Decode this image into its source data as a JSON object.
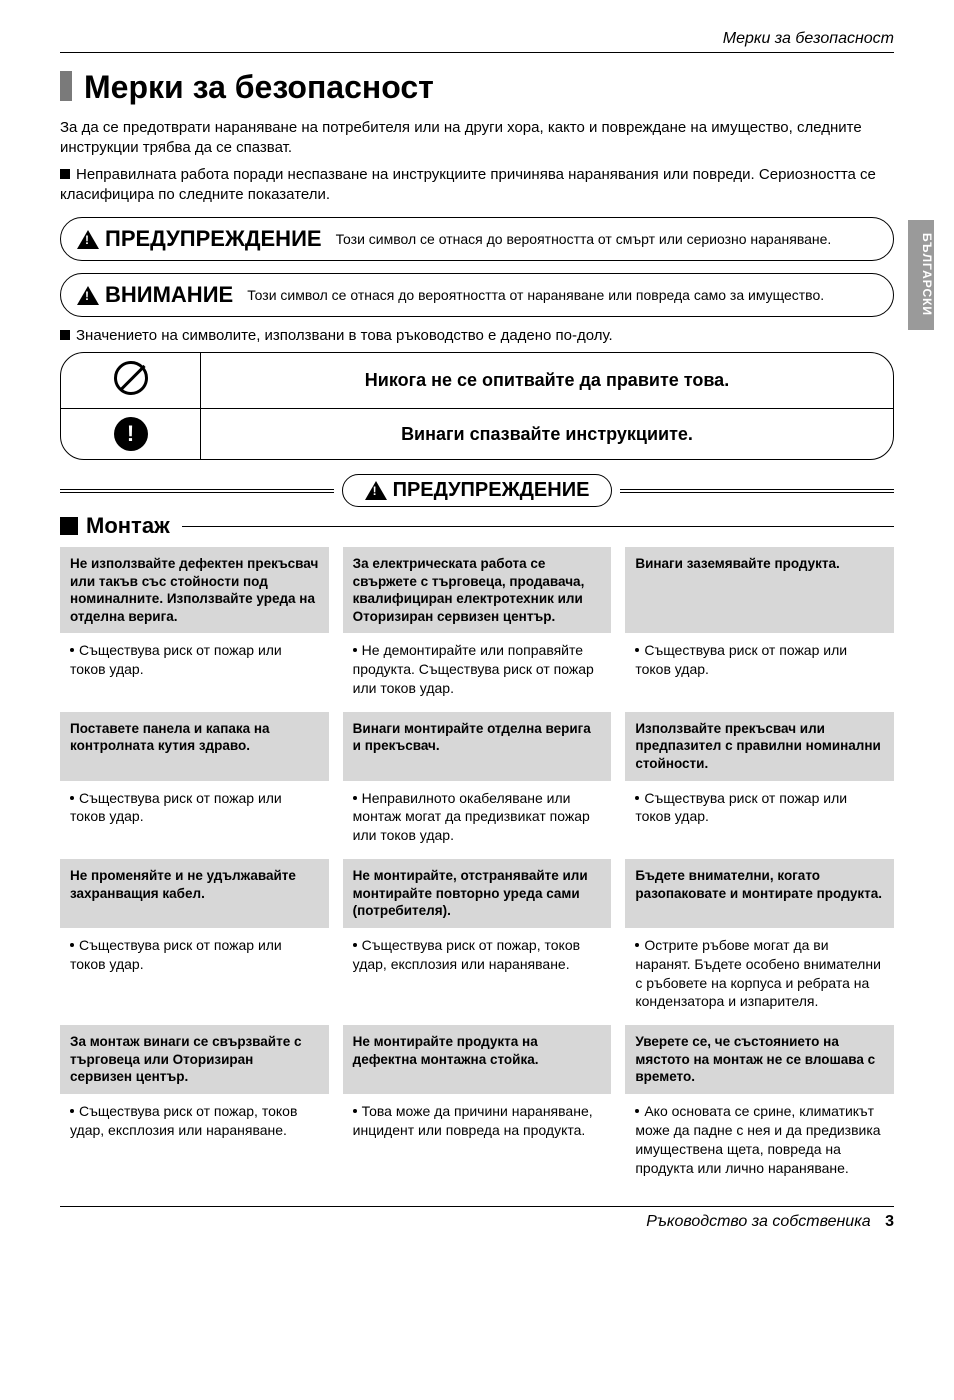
{
  "header": {
    "running_title": "Мерки за безопасност"
  },
  "side_tab": "БЪЛГАРСКИ",
  "title": "Мерки за безопасност",
  "intro": {
    "p1": "За да се предотврати нараняване на потребителя или на други хора, както и повреждане на имущество, следните инструкции трябва да се спазват.",
    "p2": "Неправилната работа поради неспазване на инструкциите причинява наранявания или повреди. Сериозността се класифицира по следните показатели."
  },
  "capsules": {
    "warn_label": "ПРЕДУПРЕЖДЕНИЕ",
    "warn_text": "Този символ се отнася до вероятността от смърт или сериозно нараняване.",
    "attn_label": "ВНИМАНИЕ",
    "attn_text": "Този символ се отнася до вероятността от нараняване или повреда само за имущество."
  },
  "symbols_note": "Значението на символите, използвани в това ръководство е дадено по-долу.",
  "rules": {
    "never": "Никога не се опитвайте да правите това.",
    "always": "Винаги спазвайте инструкциите."
  },
  "divider_label": "ПРЕДУПРЕЖДЕНИЕ",
  "section": "Монтаж",
  "cells": {
    "r1c1h": "Не използвайте дефектен прекъсвач или такъв със стойности под номиналните. Използвайте уреда на отделна верига.",
    "r1c2h": "За електрическата работа се свържете с търговеца, продавача, квалифициран електротехник или Оторизиран сервизен център.",
    "r1c3h": "Винаги заземявайте продукта.",
    "r1c1b": "Съществува риск от пожар или токов удар.",
    "r1c2b": "Не демонтирайте или поправяйте продукта. Съществува риск от пожар или токов удар.",
    "r1c3b": "Съществува риск от пожар или токов удар.",
    "r2c1h": "Поставете панела и капака на контролната кутия здраво.",
    "r2c2h": "Винаги монтирайте отделна верига и прекъсвач.",
    "r2c3h": "Използвайте прекъсвач или предпазител с правилни номинални стойности.",
    "r2c1b": "Съществува риск от пожар или токов удар.",
    "r2c2b": "Неправилното окабеляване или монтаж могат да предизвикат пожар или токов удар.",
    "r2c3b": "Съществува риск от пожар или токов удар.",
    "r3c1h": "Не променяйте и не удължавайте захранващия кабел.",
    "r3c2h": "Не монтирайте, отстранявайте или монтирайте повторно уреда сами (потребителя).",
    "r3c3h": "Бъдете внимателни, когато разопаковате и монтирате продукта.",
    "r3c1b": "Съществува риск от пожар или токов удар.",
    "r3c2b": "Съществува риск от пожар, токов удар, експлозия или нараняване.",
    "r3c3b": "Острите ръбове могат да ви наранят. Бъдете особено внимателни с ръбовете на корпуса и ребрата на кондензатора и изпарителя.",
    "r4c1h": "За монтаж винаги се свързвайте с търговеца или Оторизиран сервизен център.",
    "r4c2h": "Не монтирайте продукта на дефектна монтажна стойка.",
    "r4c3h": "Уверете се, че състоянието на мястото на монтаж не се влошава с времето.",
    "r4c1b": "Съществува риск от пожар, токов удар, експлозия или нараняване.",
    "r4c2b": "Това може да причини нараняване, инцидент или повреда на продукта.",
    "r4c3b": "Ако основата се срине, климатикът може да падне с нея и да предизвика имуществена щета, повреда на продукта или лично нараняване."
  },
  "footer": {
    "text": "Ръководство за собственика",
    "page": "3"
  },
  "colors": {
    "gray_cell": "#d7d7d7",
    "side_tab": "#9a9a9a",
    "title_bar": "#7a7a7a"
  }
}
